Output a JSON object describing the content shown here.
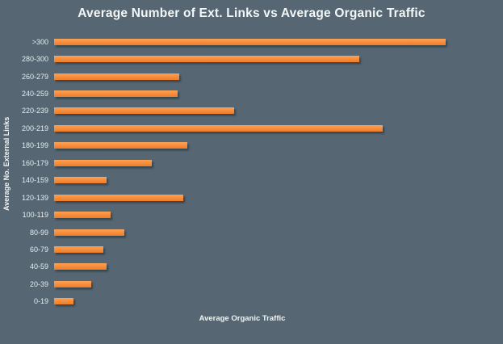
{
  "chart_data": {
    "type": "bar",
    "orientation": "horizontal",
    "title": "Average Number of Ext. Links vs Average Organic Traffic",
    "xlabel": "Average Organic Traffic",
    "ylabel": "Average No. External Links",
    "categories": [
      ">300",
      "280-300",
      "260-279",
      "240-259",
      "220-239",
      "200-219",
      "180-199",
      "160-179",
      "140-159",
      "120-139",
      "100-119",
      "80-99",
      "60-79",
      "40-59",
      "20-39",
      "0-19"
    ],
    "values": [
      100,
      78,
      32,
      31.5,
      46,
      84,
      34,
      25,
      13.5,
      33,
      14.5,
      18,
      12.5,
      13.5,
      9.5,
      5
    ],
    "value_note": "x-axis has no numeric tick labels; values are relative bar lengths normalized so the longest bar (>300) = 100",
    "xlim": [
      0,
      100
    ],
    "grid": false,
    "legend": null,
    "colors": {
      "background": "#566773",
      "bar": "#F78C38",
      "bar_gradient_top": "#F9A359",
      "bar_gradient_bottom": "#EF7D2B",
      "title_text": "#F4F7F8",
      "tick_text": "#E6ECEF",
      "axis_label_text": "#F0F4F6"
    }
  }
}
